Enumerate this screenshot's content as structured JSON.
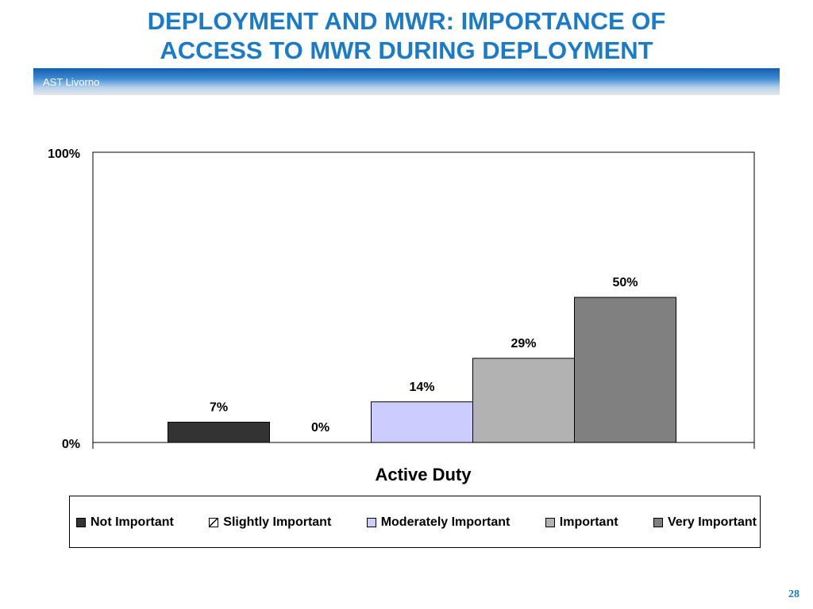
{
  "slide": {
    "title_line1": "DEPLOYMENT AND MWR: IMPORTANCE OF",
    "title_line2": "ACCESS TO MWR DURING DEPLOYMENT",
    "banner_text": "AST Livorno",
    "page_number": "28"
  },
  "chart_data": {
    "type": "bar",
    "categories": [
      "Active Duty"
    ],
    "xlabel": "Active Duty",
    "ylabel": "",
    "ylim": [
      0,
      100
    ],
    "y_ticks": [
      "0%",
      "100%"
    ],
    "grid": false,
    "legend_position": "bottom",
    "series": [
      {
        "name": "Not Important",
        "values": [
          7
        ],
        "label": "7%",
        "color": "#333333"
      },
      {
        "name": "Slightly Important",
        "values": [
          0
        ],
        "label": "0%",
        "color": "#ffffff"
      },
      {
        "name": "Moderately Important",
        "values": [
          14
        ],
        "label": "14%",
        "color": "#ccccff"
      },
      {
        "name": "Important",
        "values": [
          29
        ],
        "label": "29%",
        "color": "#b2b2b2"
      },
      {
        "name": "Very Important",
        "values": [
          50
        ],
        "label": "50%",
        "color": "#808080"
      }
    ]
  }
}
